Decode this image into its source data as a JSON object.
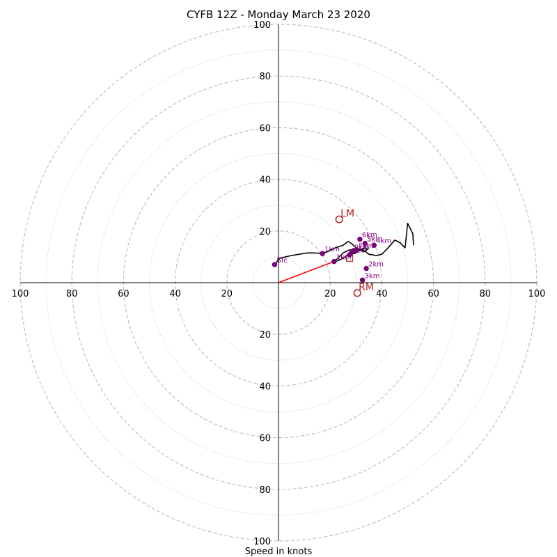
{
  "chart_data": {
    "type": "hodograph",
    "title": "CYFB 12Z - Monday March 23 2020",
    "xlabel": "Speed in knots",
    "speed_range": [
      0,
      100
    ],
    "ring_major_step": 20,
    "ring_minor_step": 10,
    "tick_labels": {
      "right": [
        "20",
        "40",
        "60",
        "80",
        "100"
      ],
      "left": [
        "20",
        "40",
        "60",
        "80",
        "100"
      ],
      "up": [
        "20",
        "40",
        "60",
        "80",
        "100"
      ],
      "down": [
        "20",
        "40",
        "60",
        "80",
        "100"
      ]
    },
    "units": "knots",
    "trace_points": [
      [
        -1.5,
        7
      ],
      [
        0.5,
        9.5
      ],
      [
        5,
        10.5
      ],
      [
        11,
        11.5
      ],
      [
        14,
        11.5
      ],
      [
        17,
        11.3
      ],
      [
        19,
        12
      ],
      [
        22,
        13.5
      ],
      [
        25,
        14.5
      ],
      [
        27,
        16
      ],
      [
        28.5,
        15
      ],
      [
        30,
        13.5
      ],
      [
        32,
        12.5
      ],
      [
        33,
        12
      ],
      [
        34,
        12.5
      ],
      [
        34.5,
        13
      ],
      [
        33.5,
        13.5
      ],
      [
        32,
        13
      ],
      [
        30,
        11.5
      ],
      [
        28,
        11
      ],
      [
        26.5,
        10.5
      ],
      [
        25,
        9.5
      ],
      [
        23,
        8.5
      ],
      [
        21.5,
        8.2
      ],
      [
        23,
        9.5
      ],
      [
        25,
        11.5
      ],
      [
        27,
        12.5
      ],
      [
        29,
        13
      ],
      [
        31,
        13
      ],
      [
        33,
        12.5
      ],
      [
        35,
        11
      ],
      [
        38,
        10.5
      ],
      [
        40,
        11
      ],
      [
        42,
        13
      ],
      [
        45,
        16.5
      ],
      [
        47,
        15.5
      ],
      [
        49,
        13.5
      ],
      [
        50,
        23
      ],
      [
        52,
        19
      ],
      [
        52.3,
        14.5
      ]
    ],
    "heights": [
      {
        "label": "Sfc",
        "u": -1.5,
        "v": 7
      },
      {
        "label": "1km",
        "u": 17,
        "v": 11.3
      },
      {
        "label": "1km",
        "u": 21.5,
        "v": 8.2
      },
      {
        "label": "2km",
        "u": 34,
        "v": 5.5
      },
      {
        "label": "3km",
        "u": 32.5,
        "v": 1
      },
      {
        "label": "6km",
        "u": 31.5,
        "v": 16.8
      },
      {
        "label": "5km",
        "u": 33.5,
        "v": 15.2
      },
      {
        "label": "4km",
        "u": 37,
        "v": 14.5
      },
      {
        "label": "9km",
        "u": 28.5,
        "v": 12
      },
      {
        "label": "7km",
        "u": 30,
        "v": 12.5
      },
      {
        "label": "8km",
        "u": 27.5,
        "v": 10.8
      }
    ],
    "storm_motion": [
      {
        "label": "LM",
        "u": 23.5,
        "v": 24.5
      },
      {
        "label": "RM",
        "u": 30.5,
        "v": -4
      }
    ],
    "mean_wind": {
      "u": 27.5,
      "v": 9.5
    },
    "motion_line": {
      "from": [
        0,
        0
      ],
      "to": [
        21.5,
        8.2
      ]
    },
    "colors": {
      "trace": "#000000",
      "height_points": "#800080",
      "storm_motion": "#b22222",
      "motion_line": "#ff0000",
      "rings": "#bbbbbb"
    }
  }
}
